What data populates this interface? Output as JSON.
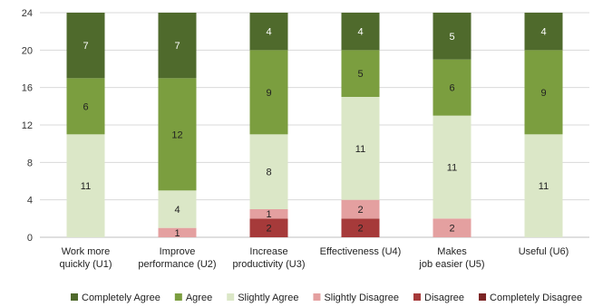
{
  "chart_data": {
    "type": "bar",
    "stacked": true,
    "title": "",
    "xlabel": "",
    "ylabel": "",
    "ylim": [
      0,
      24
    ],
    "yticks": [
      0,
      4,
      8,
      12,
      16,
      20,
      24
    ],
    "grid": true,
    "legend_position": "bottom",
    "categories": [
      [
        "Work more",
        "quickly (U1)"
      ],
      [
        "Improve",
        "performance (U2)"
      ],
      [
        "Increase",
        "productivity (U3)"
      ],
      [
        "Effectiveness (U4)"
      ],
      [
        "Makes",
        "job easier (U5)"
      ],
      [
        "Useful (U6)"
      ]
    ],
    "series": [
      {
        "name": "Completely Disagree",
        "color": "#7b2424",
        "label_color": "#222222",
        "values": [
          0,
          0,
          0,
          0,
          0,
          0
        ]
      },
      {
        "name": "Disagree",
        "color": "#a63a3a",
        "label_color": "#222222",
        "values": [
          0,
          0,
          2,
          2,
          0,
          0
        ]
      },
      {
        "name": "Slightly Disagree",
        "color": "#e4a0a0",
        "label_color": "#222222",
        "values": [
          0,
          1,
          1,
          2,
          2,
          0
        ]
      },
      {
        "name": "Slightly Agree",
        "color": "#dbe7c7",
        "label_color": "#222222",
        "values": [
          11,
          4,
          8,
          11,
          11,
          11
        ]
      },
      {
        "name": "Agree",
        "color": "#7b9e3f",
        "label_color": "#222222",
        "values": [
          6,
          12,
          9,
          5,
          6,
          9
        ]
      },
      {
        "name": "Completely Agree",
        "color": "#4f6a2c",
        "label_color": "#ffffff",
        "values": [
          7,
          7,
          4,
          4,
          5,
          4
        ]
      }
    ],
    "legend_order": [
      "Completely Agree",
      "Agree",
      "Slightly Agree",
      "Slightly Disagree",
      "Disagree",
      "Completely Disagree"
    ]
  }
}
